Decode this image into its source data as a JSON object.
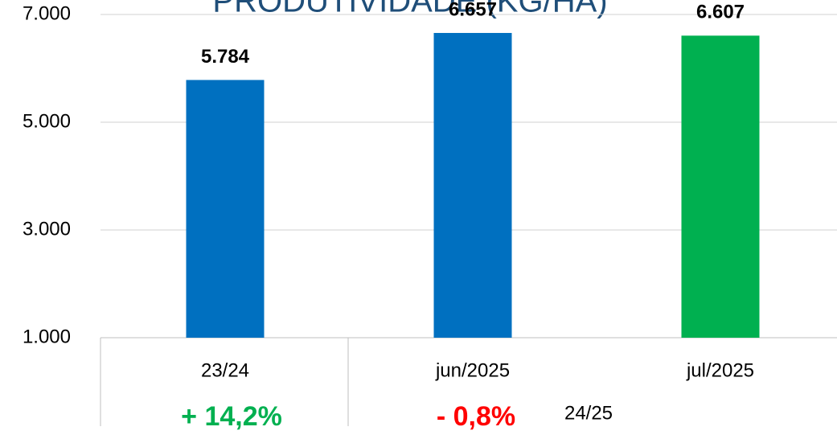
{
  "chart_data": {
    "type": "bar",
    "title": "PRODUTIVIDADE (KG/HA)",
    "categories": [
      "23/24",
      "jun/2025",
      "jul/2025"
    ],
    "values": [
      5784,
      6657,
      6607
    ],
    "value_labels": [
      "5.784",
      "6.657",
      "6.607"
    ],
    "colors": [
      "#0070c0",
      "#0070c0",
      "#00b050"
    ],
    "ylim": [
      1000,
      7000
    ],
    "yticks": [
      {
        "value": 1000,
        "label": "1.000"
      },
      {
        "value": 3000,
        "label": "3.000"
      },
      {
        "value": 5000,
        "label": "5.000"
      },
      {
        "value": 7000,
        "label": "7.000"
      }
    ],
    "grid": true,
    "annotations": [
      {
        "text": "+ 14,2%",
        "color": "#00b050"
      },
      {
        "text": "- 0,8%",
        "color": "#ff0000"
      },
      {
        "text": "24/25",
        "color": "#000000"
      }
    ]
  }
}
